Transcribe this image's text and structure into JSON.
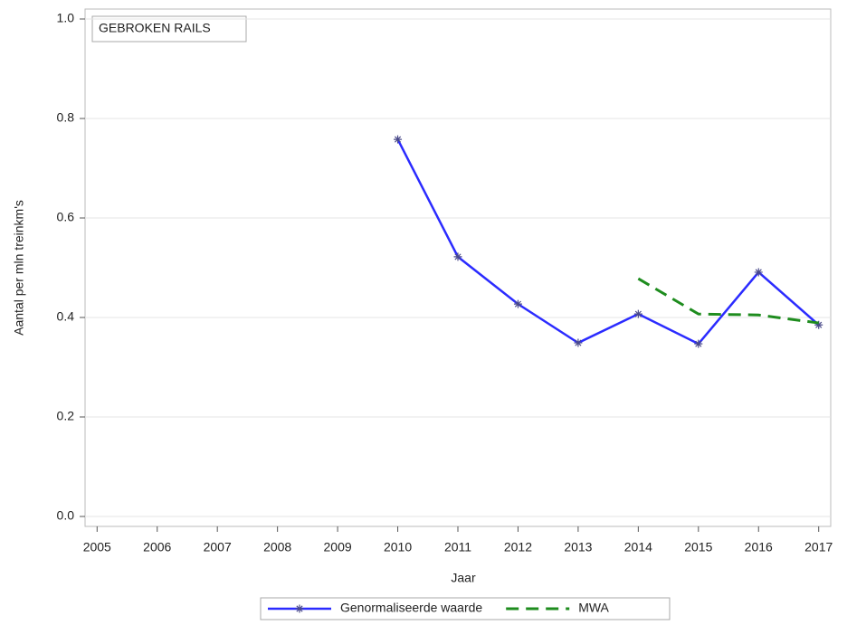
{
  "chart_data": {
    "type": "line",
    "annotation": "GEBROKEN RAILS",
    "xlabel": "Jaar",
    "ylabel": "Aantal per mln treinkm's",
    "x": [
      2005,
      2006,
      2007,
      2008,
      2009,
      2010,
      2011,
      2012,
      2013,
      2014,
      2015,
      2016,
      2017
    ],
    "series": [
      {
        "name": "Genormaliseerde waarde",
        "color": "#2b2bff",
        "dash": false,
        "marker": true,
        "values": [
          null,
          null,
          null,
          null,
          null,
          0.758,
          0.522,
          0.427,
          0.349,
          0.407,
          0.347,
          0.491,
          0.385
        ]
      },
      {
        "name": "MWA",
        "color": "#1e8c1e",
        "dash": true,
        "marker": false,
        "values": [
          null,
          null,
          null,
          null,
          null,
          null,
          null,
          null,
          null,
          0.478,
          0.407,
          0.405,
          0.389
        ]
      }
    ],
    "xlim": [
      2004.8,
      2017.2
    ],
    "xticks": [
      2005,
      2006,
      2007,
      2008,
      2009,
      2010,
      2011,
      2012,
      2013,
      2014,
      2015,
      2016,
      2017
    ],
    "ylim": [
      -0.02,
      1.02
    ],
    "yticks": [
      {
        "value": 0,
        "label": "0.0"
      },
      0.2,
      0.4,
      0.6,
      0.8,
      {
        "value": 1,
        "label": "1.0"
      }
    ],
    "grid": true
  }
}
